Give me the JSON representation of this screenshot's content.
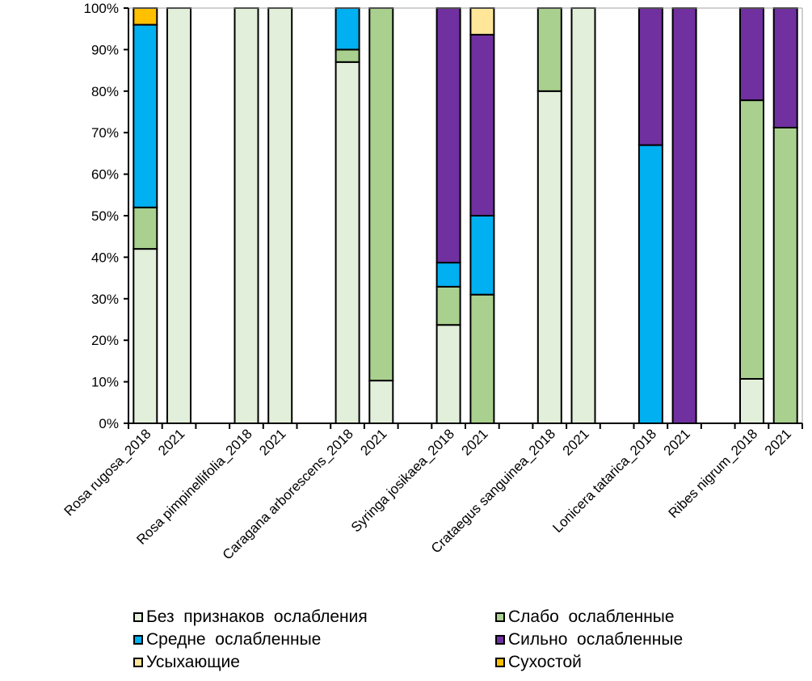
{
  "chart_data": {
    "type": "bar",
    "stacked": true,
    "percent": true,
    "title": "",
    "xlabel": "",
    "ylabel": "",
    "ylim": [
      0,
      100
    ],
    "yticks": [
      "0%",
      "10%",
      "20%",
      "30%",
      "40%",
      "50%",
      "60%",
      "70%",
      "80%",
      "90%",
      "100%"
    ],
    "grid": false,
    "legend_position": "bottom",
    "categories": [
      "Rosa rugosa_2018",
      "2021",
      "",
      "Rosa pimpinellifolia_2018",
      "2021",
      "",
      "Caragana arborescens_2018",
      "2021",
      "",
      "Syringa josikaea_2018",
      "2021",
      "",
      "Crataegus sanguinea_2018",
      "2021",
      "",
      "Lonicera tatarica_2018",
      "2021",
      "",
      "Ribes nigrum_2018",
      "2021"
    ],
    "series": [
      {
        "name": "Без  признаков  ослабления",
        "color": "#E2EFDA",
        "values": [
          42,
          100,
          null,
          100,
          100,
          null,
          87,
          10.3,
          null,
          23.7,
          0,
          null,
          80,
          100,
          null,
          0,
          0,
          null,
          10.7,
          0
        ]
      },
      {
        "name": "Слабо  ослабленные",
        "color": "#A9D08E",
        "values": [
          10,
          0,
          null,
          0,
          0,
          null,
          3,
          89.7,
          null,
          9.2,
          31,
          null,
          20,
          0,
          null,
          0,
          0,
          null,
          67.1,
          71.2
        ]
      },
      {
        "name": "Средне  ослабленные",
        "color": "#00B0F0",
        "values": [
          44,
          0,
          null,
          0,
          0,
          null,
          10,
          0,
          null,
          5.8,
          19,
          null,
          0,
          0,
          null,
          67,
          0,
          null,
          0,
          0
        ]
      },
      {
        "name": "Сильно  ослабленные",
        "color": "#7030A0",
        "values": [
          0,
          0,
          null,
          0,
          0,
          null,
          0,
          0,
          null,
          61.3,
          43.6,
          null,
          0,
          0,
          null,
          33,
          100,
          null,
          22.2,
          28.8
        ]
      },
      {
        "name": "Усыхающие",
        "color": "#FFE699",
        "values": [
          0,
          0,
          null,
          0,
          0,
          null,
          0,
          0,
          null,
          0,
          6.4,
          null,
          0,
          0,
          null,
          0,
          0,
          null,
          0,
          0
        ]
      },
      {
        "name": "Сухостой",
        "color": "#FFC000",
        "values": [
          4,
          0,
          null,
          0,
          0,
          null,
          0,
          0,
          null,
          0,
          0,
          null,
          0,
          0,
          null,
          0,
          0,
          null,
          0,
          0
        ]
      }
    ],
    "legend_order": [
      0,
      1,
      2,
      3,
      4,
      5
    ]
  }
}
